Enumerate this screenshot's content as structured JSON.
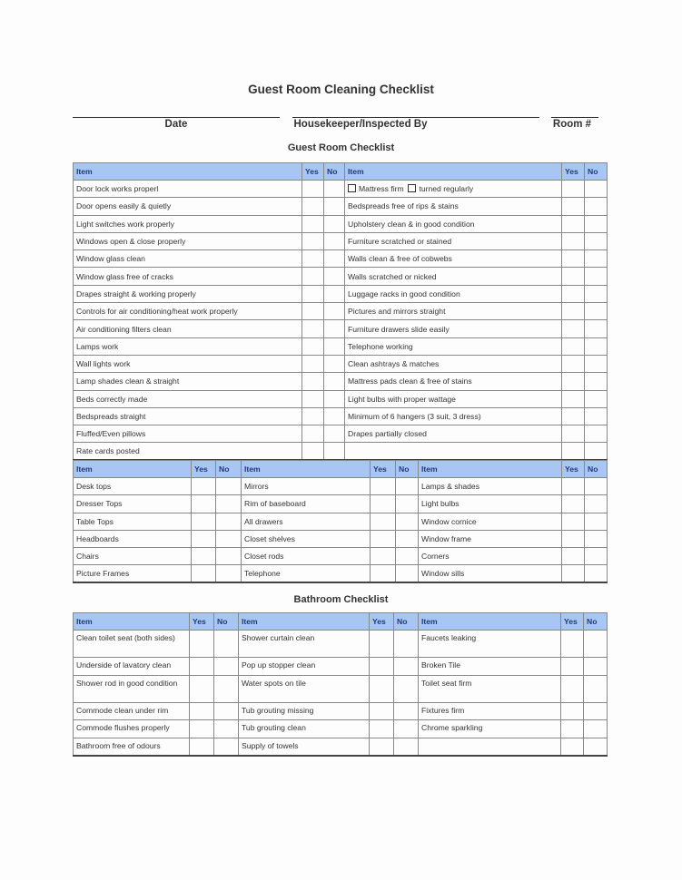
{
  "header": {
    "title": "Guest Room Cleaning Checklist",
    "date_label": "Date",
    "housekeeper_label": "Housekeeper/Inspected By",
    "room_label": "Room #"
  },
  "guest_room": {
    "title": "Guest Room Checklist",
    "col_item": "Item",
    "col_yes": "Yes",
    "col_no": "No",
    "left_items": [
      "Door lock works properl",
      "Door opens easily & quietly",
      "Light switches work properly",
      "Windows open & close properly",
      "Window glass clean",
      "Window glass free of cracks",
      "Drapes straight & working properly",
      "Controls for air conditioning/heat work properly",
      "Air conditioning filters clean",
      "Lamps work",
      "Wall lights work",
      "Lamp shades clean & straight",
      "Beds correctly made",
      "Bedspreads straight",
      "Fluffed/Even pillows",
      "Rate cards posted"
    ],
    "right_items": [
      "Mattress firm",
      "Bedspreads free of rips & stains",
      "Upholstery clean & in good condition",
      "Furniture scratched or stained",
      "Walls clean & free of cobwebs",
      "Walls scratched or nicked",
      "Luggage racks in good condition",
      "Pictures and mirrors straight",
      "Furniture drawers slide easily",
      "Telephone working",
      "Clean ashtrays & matches",
      "Mattress pads clean & free of stains",
      "Light bulbs with proper wattage",
      "Minimum of 6 hangers (3 suit, 3 dress)",
      "Drapes partially closed",
      ""
    ],
    "mattress_extra": "turned regularly",
    "grid_col1": [
      "Desk tops",
      "Dresser Tops",
      "Table Tops",
      "Headboards",
      "Chairs",
      "Picture Frames"
    ],
    "grid_col2": [
      "Mirrors",
      "Rim of baseboard",
      "All drawers",
      "Closet shelves",
      "Closet rods",
      "Telephone"
    ],
    "grid_col3": [
      "Lamps & shades",
      "Light bulbs",
      "Window cornice",
      "Window frame",
      "Corners",
      "Window sills"
    ]
  },
  "bathroom": {
    "title": "Bathroom Checklist",
    "col1": [
      "Clean toilet seat (both sides)",
      "Underside of lavatory clean",
      "Shower rod in good condition",
      "Commode clean under rim",
      "Commode flushes properly",
      "Bathroom free of odours"
    ],
    "col2": [
      "Shower curtain clean",
      "Pop up stopper clean",
      "Water spots on tile",
      "Tub grouting missing",
      "Tub grouting clean",
      "Supply of towels"
    ],
    "col3": [
      "Faucets leaking",
      "Broken Tile",
      "Toilet seat firm",
      "Fixtures firm",
      "Chrome sparkling",
      ""
    ]
  },
  "colors": {
    "header_fill": "#a7c7f2",
    "header_text": "#1f3b78"
  }
}
